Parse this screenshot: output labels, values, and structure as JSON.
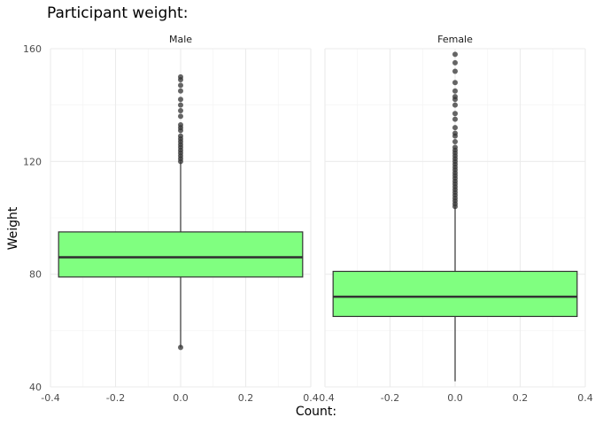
{
  "chart_data": {
    "type": "boxplot",
    "title": "Participant weight:",
    "xlabel": "Count:",
    "ylabel": "Weight",
    "xlim": [
      -0.4,
      0.4
    ],
    "ylim": [
      40,
      160
    ],
    "x_ticks": [
      "-0.4",
      "-0.2",
      "0.0",
      "0.2",
      "0.4"
    ],
    "x_tick_values": [
      -0.4,
      -0.2,
      0.0,
      0.2,
      0.4
    ],
    "y_ticks": [
      "40",
      "80",
      "120",
      "160"
    ],
    "y_tick_values": [
      40,
      80,
      120,
      160
    ],
    "grid": true,
    "box_color": "#80ff80",
    "panels": [
      {
        "name": "Male",
        "box_x": [
          -0.375,
          0.375
        ],
        "whisker_low": 54,
        "q1": 79,
        "median": 86,
        "q3": 95,
        "whisker_high": 120,
        "outliers": [
          54,
          120,
          121,
          122,
          123,
          124,
          125,
          126,
          127,
          128,
          129,
          131,
          132,
          133,
          136,
          138,
          140,
          142,
          145,
          147,
          149,
          150
        ]
      },
      {
        "name": "Female",
        "box_x": [
          -0.375,
          0.375
        ],
        "whisker_low": 42,
        "q1": 65,
        "median": 72,
        "q3": 81,
        "whisker_high": 104,
        "outliers": [
          104,
          105,
          106,
          107,
          108,
          109,
          110,
          111,
          112,
          113,
          114,
          115,
          116,
          117,
          118,
          119,
          120,
          121,
          122,
          123,
          124,
          125,
          127,
          129,
          130,
          132,
          135,
          137,
          140,
          142,
          143,
          145,
          148,
          152,
          155,
          158
        ]
      }
    ]
  }
}
